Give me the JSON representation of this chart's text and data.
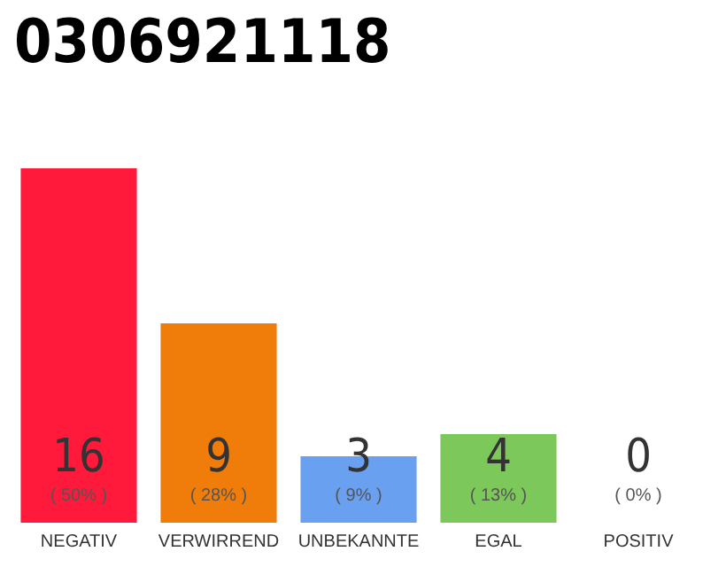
{
  "chart_data": {
    "type": "bar",
    "title": "0306921118",
    "categories": [
      "NEGATIV",
      "VERWIRREND",
      "UNBEKANNTE",
      "EGAL",
      "POSITIV"
    ],
    "values": [
      16,
      9,
      3,
      4,
      0
    ],
    "colors": [
      "#ff1a3c",
      "#f07d0a",
      "#6aa0f0",
      "#7dc85a",
      "#cccccc"
    ],
    "value_labels": [
      "16\n( 50% )",
      "9\n( 28% )",
      "3\n( 9% )",
      "4\n( 13% )",
      "0\n( 0% )"
    ]
  }
}
